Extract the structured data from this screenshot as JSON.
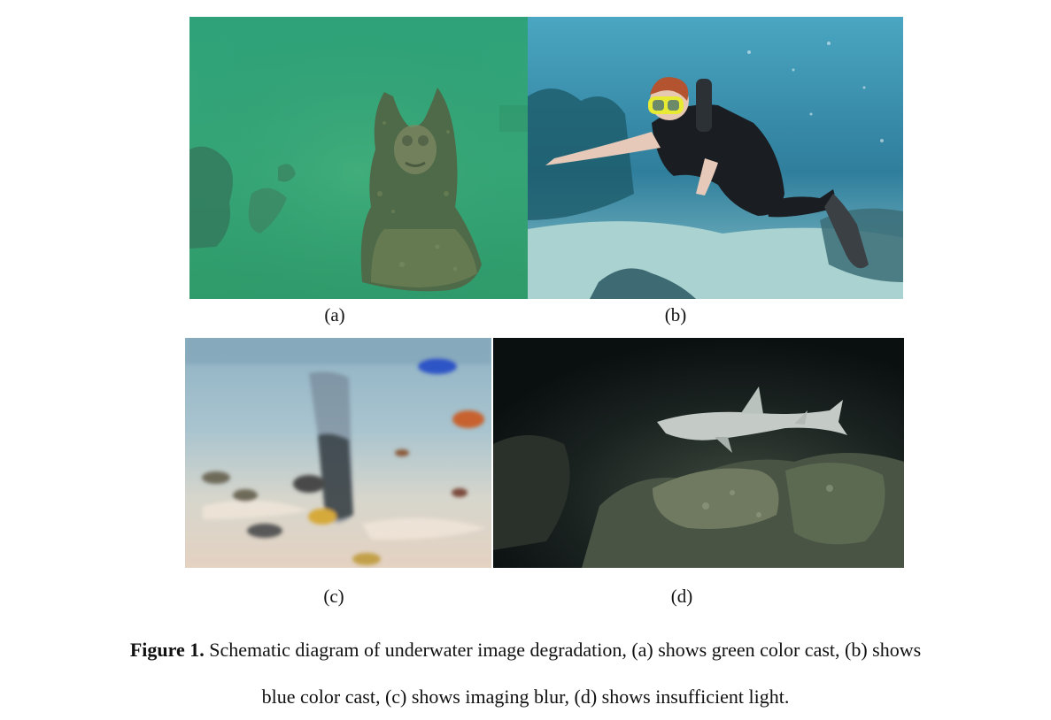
{
  "figure": {
    "panels": [
      {
        "label": "(a)",
        "depicts": "green-cast underwater statue"
      },
      {
        "label": "(b)",
        "depicts": "blue-cast scuba diver"
      },
      {
        "label": "(c)",
        "depicts": "blurred fish in shallow water"
      },
      {
        "label": "(d)",
        "depicts": "dark reef with shark"
      }
    ],
    "caption": {
      "prefix": "Figure 1.",
      "line1": " Schematic diagram of underwater image degradation, (a) shows green color cast, (b) shows",
      "line2": "blue color cast, (c) shows imaging blur, (d) shows insufficient light."
    }
  }
}
